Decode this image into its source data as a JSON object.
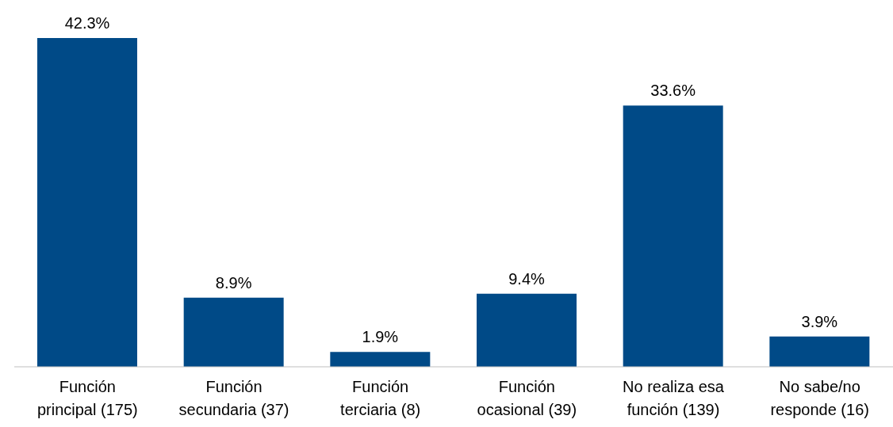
{
  "chart_data": {
    "type": "bar",
    "categories": [
      "Función principal (175)",
      "Función secundaria (37)",
      "Función terciaria (8)",
      "Función ocasional (39)",
      "No realiza esa función (139)",
      "No sabe/no responde (16)"
    ],
    "values": [
      42.3,
      8.9,
      1.9,
      9.4,
      33.6,
      3.9
    ],
    "value_labels": [
      "42.3%",
      "8.9%",
      "1.9%",
      "9.4%",
      "33.6%",
      "3.9%"
    ],
    "color": "#004a87",
    "grid": false,
    "legend": false
  }
}
